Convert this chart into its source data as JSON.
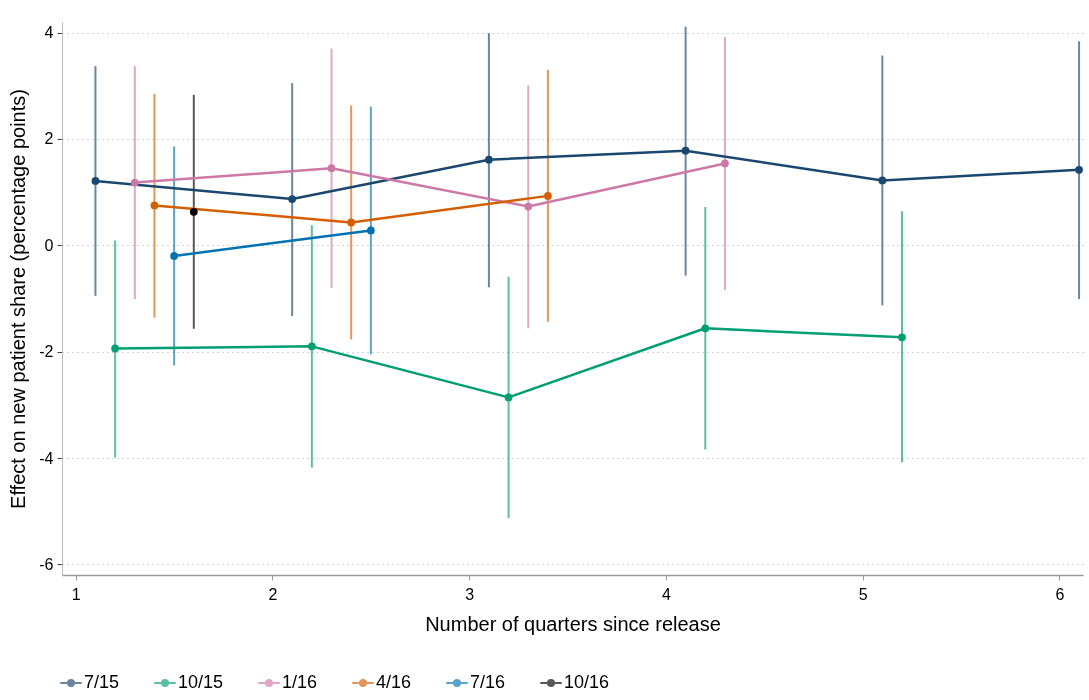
{
  "chart_data": {
    "type": "line",
    "xlabel": "Number of quarters since release",
    "ylabel": "Effect on new patient share  (percentage points)",
    "xlim": [
      0.93,
      6.12
    ],
    "xticks": [
      1,
      2,
      3,
      4,
      5,
      6
    ],
    "ylim": [
      -6.2,
      4.2
    ],
    "yticks": [
      -6,
      -4,
      -2,
      0,
      2,
      4
    ],
    "grid": "y",
    "legend": "bottom",
    "marker": "circle",
    "line_style": "solid",
    "series": [
      {
        "name": "7/15",
        "color": "#1a476f",
        "x": [
          1.1,
          2.1,
          3.1,
          4.1,
          5.1,
          6.1
        ],
        "values": [
          1.21,
          0.87,
          1.61,
          1.78,
          1.22,
          1.42
        ],
        "errors": [
          [
            -0.95,
            3.37
          ],
          [
            -1.33,
            3.05
          ],
          [
            -0.79,
            3.99
          ],
          [
            -0.57,
            4.11
          ],
          [
            -1.13,
            3.57
          ],
          [
            -1.01,
            3.84
          ]
        ]
      },
      {
        "name": "10/15",
        "color": "#009e73",
        "x": [
          1.2,
          2.2,
          3.2,
          4.2,
          5.2
        ],
        "values": [
          -1.94,
          -1.9,
          -2.86,
          -1.56,
          -1.73
        ],
        "errors": [
          [
            -3.99,
            0.09
          ],
          [
            -4.18,
            0.38
          ],
          [
            -5.13,
            -0.59
          ],
          [
            -3.84,
            0.72
          ],
          [
            -4.08,
            0.64
          ]
        ]
      },
      {
        "name": "1/16",
        "color": "#cc79a7",
        "x": [
          1.3,
          2.3,
          3.3,
          4.3
        ],
        "values": [
          1.18,
          1.45,
          0.73,
          1.54
        ],
        "errors": [
          [
            -1.01,
            3.37
          ],
          [
            -0.8,
            3.7
          ],
          [
            -1.56,
            3.01
          ],
          [
            -0.84,
            3.92
          ]
        ]
      },
      {
        "name": "4/16",
        "color": "#d55e00",
        "x": [
          1.4,
          2.4,
          3.4
        ],
        "values": [
          0.75,
          0.43,
          0.93
        ],
        "errors": [
          [
            -1.36,
            2.85
          ],
          [
            -1.77,
            2.63
          ],
          [
            -1.44,
            3.3
          ]
        ]
      },
      {
        "name": "7/16",
        "color": "#0072b2",
        "x": [
          1.5,
          2.5
        ],
        "values": [
          -0.2,
          0.28
        ],
        "errors": [
          [
            -2.26,
            1.86
          ],
          [
            -2.05,
            2.61
          ]
        ]
      },
      {
        "name": "10/16",
        "color": "#000000",
        "x": [
          1.6
        ],
        "values": [
          0.63
        ],
        "errors": [
          [
            -1.57,
            2.83
          ]
        ]
      }
    ]
  }
}
